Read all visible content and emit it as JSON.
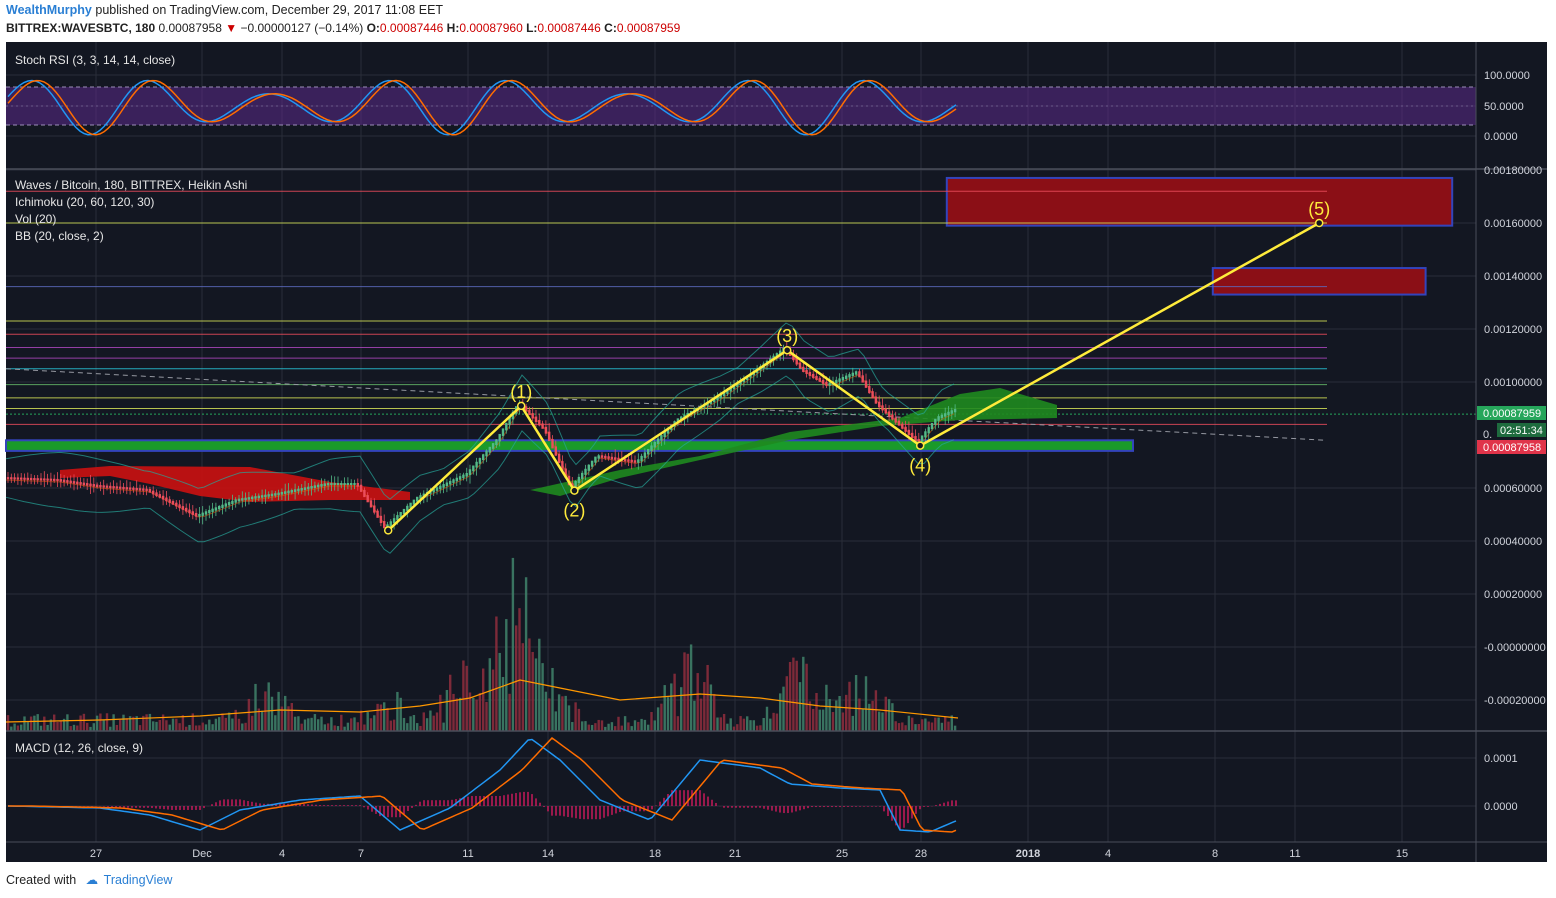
{
  "header": {
    "author": "WealthMurphy",
    "published": "published on TradingView.com, December 29, 2017 11:08 EET",
    "symbol": "BITTREX:WAVESBTC, 180",
    "last": "0.00087958",
    "change": "−0.00000127 (−0.14%)",
    "o_label": "O:",
    "o": "0.00087446",
    "h_label": "H:",
    "h": "0.00087960",
    "l_label": "L:",
    "l": "0.00087446",
    "c_label": "C:",
    "c": "0.00087959"
  },
  "panes": {
    "stoch_title": "Stoch RSI (3, 3, 14, 14, close)",
    "main_title": "Waves / Bitcoin, 180, BITTREX, Heikin Ashi",
    "ichimoku": "Ichimoku (20, 60, 120, 30)",
    "vol": "Vol (20)",
    "bb": "BB (20, close, 2)",
    "macd_title": "MACD (12, 26, close, 9)"
  },
  "footer": {
    "created": "Created with",
    "brand": "TradingView"
  },
  "colors": {
    "background": "#131722",
    "grid": "#2a2e39",
    "wave": "#ffeb3b",
    "up": "#53b987",
    "down": "#eb4d5c",
    "cloud_green": "#1f8a1f",
    "cloud_red": "#cc1111",
    "zone_red": "#8b0f16",
    "zone_border": "#3344bb",
    "stoch_band": "#5b2a8a",
    "macd_line": "#2196f3",
    "signal_line": "#ff6d00"
  },
  "chart_data": [
    {
      "type": "line",
      "pane": "price",
      "title": "Waves / Bitcoin, 180, BITTREX, Heikin Ashi",
      "x_ticks": [
        "27",
        "Dec",
        "4",
        "7",
        "11",
        "14",
        "18",
        "21",
        "25",
        "28",
        "2018",
        "4",
        "8",
        "11",
        "15"
      ],
      "y_ticks": [
        "0.00180000",
        "0.00160000",
        "0.00140000",
        "0.00120000",
        "0.00100000",
        "0.00060000",
        "0.00040000",
        "0.00020000",
        "-0.00000000",
        "-0.00020000"
      ],
      "ylim": [
        -0.00028,
        0.0018
      ],
      "price_labels": {
        "last": "0.00087959",
        "countdown": "02:51:34",
        "close": "0.00087958",
        "partial": "0."
      },
      "elliott_wave": {
        "labels": [
          "(1)",
          "(2)",
          "(3)",
          "(4)",
          "(5)"
        ],
        "x": [
          "Dec 8",
          "Dec 13",
          "Dec 15",
          "Dec 23",
          "Dec 28",
          "Jan 12"
        ],
        "y": [
          0.00044,
          0.00091,
          0.00059,
          0.00112,
          0.00076,
          0.0016
        ]
      },
      "target_zones": [
        {
          "from": "Dec 29",
          "to": "Jan 17",
          "y_low": 0.00159,
          "y_high": 0.00177
        },
        {
          "from": "Jan 8",
          "to": "Jan 16",
          "y_low": 0.00133,
          "y_high": 0.00143
        }
      ],
      "support_zone": {
        "from": "Nov 24",
        "to": "Jan 5",
        "y_low": 0.00074,
        "y_high": 0.00078
      },
      "horizontal_levels": [
        {
          "y": 0.00172,
          "color": "#eb4d5c"
        },
        {
          "y": 0.0016,
          "color": "#d4e157"
        },
        {
          "y": 0.00136,
          "color": "#5c6bc0"
        },
        {
          "y": 0.00123,
          "color": "#d4e157"
        },
        {
          "y": 0.00118,
          "color": "#eb4d5c"
        },
        {
          "y": 0.00113,
          "color": "#ab47bc"
        },
        {
          "y": 0.00109,
          "color": "#ab47bc"
        },
        {
          "y": 0.00105,
          "color": "#26c6da"
        },
        {
          "y": 0.00099,
          "color": "#66bb6a"
        },
        {
          "y": 0.00094,
          "color": "#d4e157"
        },
        {
          "y": 0.0009,
          "color": "#d4e157"
        },
        {
          "y": 0.00084,
          "color": "#eb4d5c"
        }
      ],
      "trendline": {
        "from_y": 0.00105,
        "to_y": 0.00078
      }
    },
    {
      "type": "line",
      "pane": "stoch_rsi",
      "title": "Stoch RSI (3, 3, 14, 14, close)",
      "y_ticks": [
        "100.0000",
        "50.0000",
        "0.0000"
      ],
      "ylim": [
        0,
        100
      ],
      "bands": [
        80,
        20
      ]
    },
    {
      "type": "line",
      "pane": "macd",
      "title": "MACD (12, 26, close, 9)",
      "y_ticks": [
        "0.0001",
        "0.0000"
      ]
    }
  ]
}
